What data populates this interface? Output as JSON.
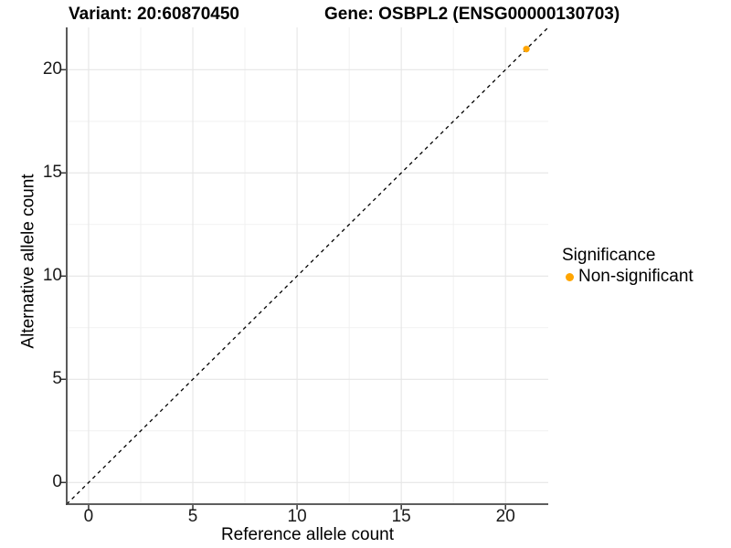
{
  "chart_data": {
    "type": "scatter",
    "titles": [
      "Variant: 20:60870450",
      "Gene: OSBPL2 (ENSG00000130703)"
    ],
    "xlabel": "Reference allele count",
    "ylabel": "Alternative allele count",
    "xlim": [
      -1.05,
      22.05
    ],
    "ylim": [
      -1.05,
      22.05
    ],
    "x_major_ticks": [
      0,
      5,
      10,
      15,
      20
    ],
    "y_major_ticks": [
      0,
      5,
      10,
      15,
      20
    ],
    "x_minor_gridlines": [
      2.5,
      7.5,
      12.5,
      17.5
    ],
    "y_minor_gridlines": [
      2.5,
      7.5,
      12.5,
      17.5
    ],
    "grid": "major+minor",
    "reference_line": {
      "type": "identity y=x",
      "style": "dashed",
      "color": "#000000"
    },
    "series": [
      {
        "name": "Non-significant",
        "color": "#FFA500",
        "points": [
          {
            "x": 21,
            "y": 21
          }
        ]
      }
    ],
    "legend": {
      "title": "Significance",
      "position": "right",
      "items": [
        {
          "label": "Non-significant",
          "color": "#FFA500"
        }
      ]
    }
  },
  "colors": {
    "background": "#FFFFFF",
    "grid_major": "#E6E6E6",
    "grid_minor": "#F1F1F1",
    "axis_line": "#474747",
    "tick_mark": "#333333",
    "text": "#000000"
  }
}
